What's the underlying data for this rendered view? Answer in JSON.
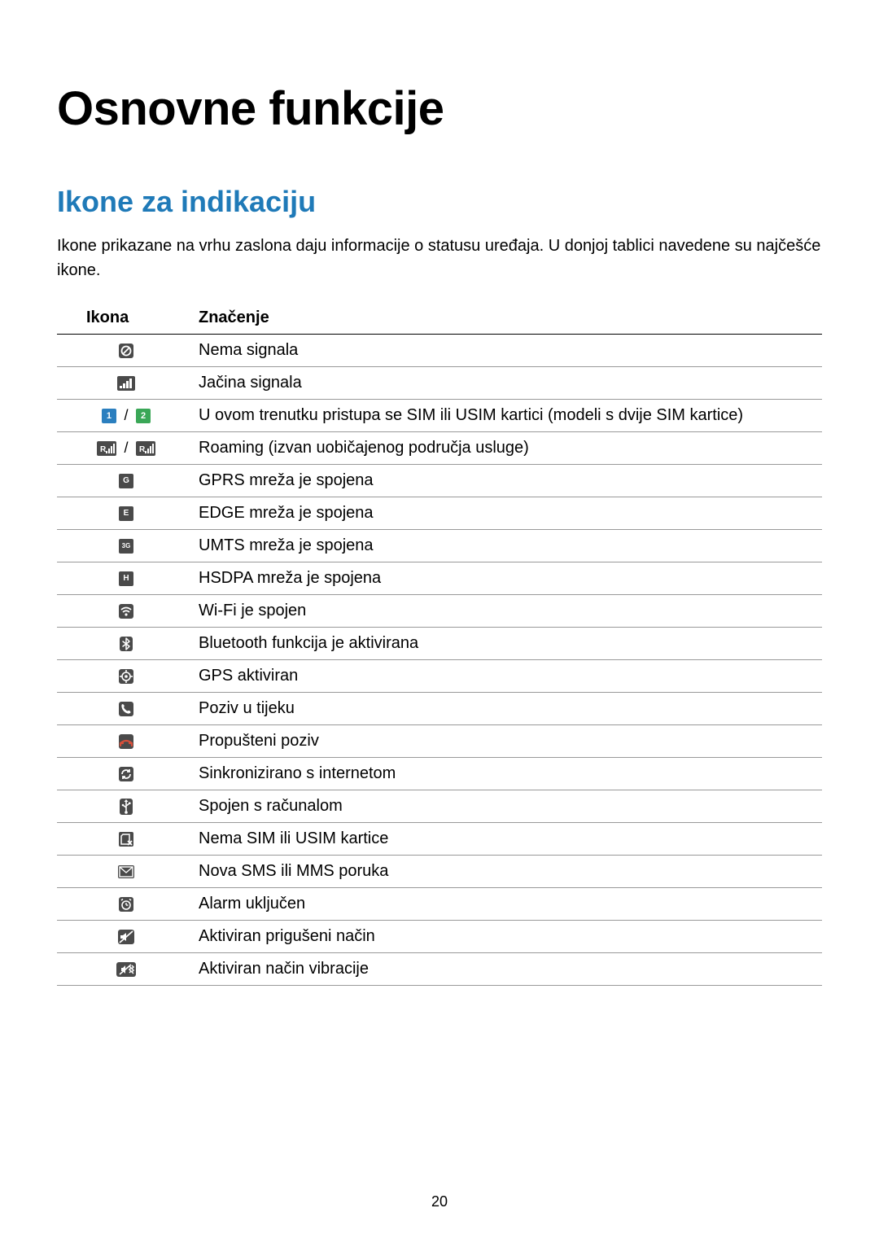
{
  "title": "Osnovne funkcije",
  "subtitle": "Ikone za indikaciju",
  "intro": "Ikone prikazane na vrhu zaslona daju informacije o statusu uređaja. U donjoj tablici navedene su najčešće ikone.",
  "columns": {
    "icon": "Ikona",
    "meaning": "Značenje"
  },
  "rows": [
    {
      "icon_key": "no-signal",
      "meaning": "Nema signala"
    },
    {
      "icon_key": "signal",
      "meaning": "Jačina signala"
    },
    {
      "icon_key": "dual-sim",
      "meaning": "U ovom trenutku pristupa se SIM ili USIM kartici (modeli s dvije SIM kartice)"
    },
    {
      "icon_key": "roaming",
      "meaning": "Roaming (izvan uobičajenog područja usluge)"
    },
    {
      "icon_key": "gprs",
      "meaning": "GPRS mreža je spojena"
    },
    {
      "icon_key": "edge",
      "meaning": "EDGE mreža je spojena"
    },
    {
      "icon_key": "umts",
      "meaning": "UMTS mreža je spojena"
    },
    {
      "icon_key": "hsdpa",
      "meaning": "HSDPA mreža je spojena"
    },
    {
      "icon_key": "wifi",
      "meaning": "Wi-Fi je spojen"
    },
    {
      "icon_key": "bluetooth",
      "meaning": "Bluetooth funkcija je aktivirana"
    },
    {
      "icon_key": "gps",
      "meaning": "GPS aktiviran"
    },
    {
      "icon_key": "call",
      "meaning": "Poziv u tijeku"
    },
    {
      "icon_key": "missed-call",
      "meaning": "Propušteni poziv"
    },
    {
      "icon_key": "sync",
      "meaning": "Sinkronizirano s internetom"
    },
    {
      "icon_key": "usb",
      "meaning": "Spojen s računalom"
    },
    {
      "icon_key": "no-sim",
      "meaning": "Nema SIM ili USIM kartice"
    },
    {
      "icon_key": "message",
      "meaning": "Nova SMS ili MMS poruka"
    },
    {
      "icon_key": "alarm",
      "meaning": "Alarm uključen"
    },
    {
      "icon_key": "mute",
      "meaning": "Aktiviran prigušeni način"
    },
    {
      "icon_key": "vibrate",
      "meaning": "Aktiviran način vibracije"
    }
  ],
  "icons": {
    "dual_sim_1_bg": "#2b7fbf",
    "dual_sim_2_bg": "#3aa757",
    "badge_bg": "#4a4a4a",
    "gprs_label": "G",
    "edge_label": "E",
    "umts_label": "3G",
    "hsdpa_label": "H",
    "roaming_r": "R"
  },
  "page_number": "20"
}
